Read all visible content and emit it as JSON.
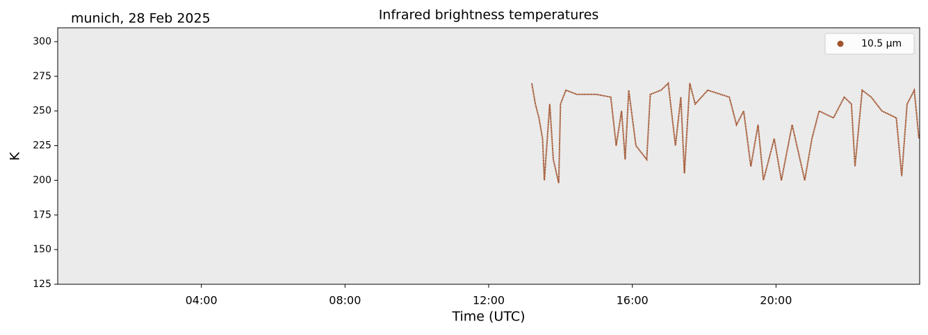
{
  "chart_data": {
    "type": "line",
    "title": "Infrared brightness temperatures",
    "subtitle": "munich, 28 Feb 2025",
    "x_label": "Time (UTC)",
    "y_label": "K",
    "xlim": [
      0,
      24
    ],
    "xticks": [
      {
        "value": 4,
        "label": "04:00"
      },
      {
        "value": 8,
        "label": "08:00"
      },
      {
        "value": 12,
        "label": "12:00"
      },
      {
        "value": 16,
        "label": "16:00"
      },
      {
        "value": 20,
        "label": "20:00"
      }
    ],
    "ylim": [
      125,
      310
    ],
    "yticks": [
      125,
      150,
      175,
      200,
      225,
      250,
      275,
      300
    ],
    "legend": "upper right",
    "background": "#ebebeb",
    "x": [
      13.2,
      13.3,
      13.4,
      13.5,
      13.55,
      13.7,
      13.8,
      13.95,
      14.0,
      14.15,
      14.45,
      15.0,
      15.4,
      15.55,
      15.7,
      15.8,
      15.9,
      16.1,
      16.4,
      16.5,
      16.8,
      17.0,
      17.2,
      17.35,
      17.45,
      17.6,
      17.75,
      18.1,
      18.7,
      18.9,
      19.1,
      19.3,
      19.5,
      19.65,
      19.95,
      20.15,
      20.45,
      20.8,
      21.0,
      21.2,
      21.6,
      21.9,
      22.1,
      22.2,
      22.4,
      22.65,
      22.95,
      23.35,
      23.5,
      23.65,
      23.85,
      23.98
    ],
    "series": [
      {
        "name": "10.5 µm",
        "color": "#a0522d",
        "values": [
          270,
          255,
          245,
          230,
          200,
          255,
          215,
          198,
          255,
          265,
          262,
          262,
          260,
          225,
          250,
          215,
          265,
          225,
          215,
          262,
          265,
          270,
          225,
          260,
          205,
          270,
          255,
          265,
          260,
          240,
          250,
          210,
          240,
          200,
          230,
          200,
          240,
          200,
          230,
          250,
          245,
          260,
          255,
          210,
          265,
          260,
          250,
          245,
          203,
          255,
          265,
          230
        ]
      }
    ]
  }
}
